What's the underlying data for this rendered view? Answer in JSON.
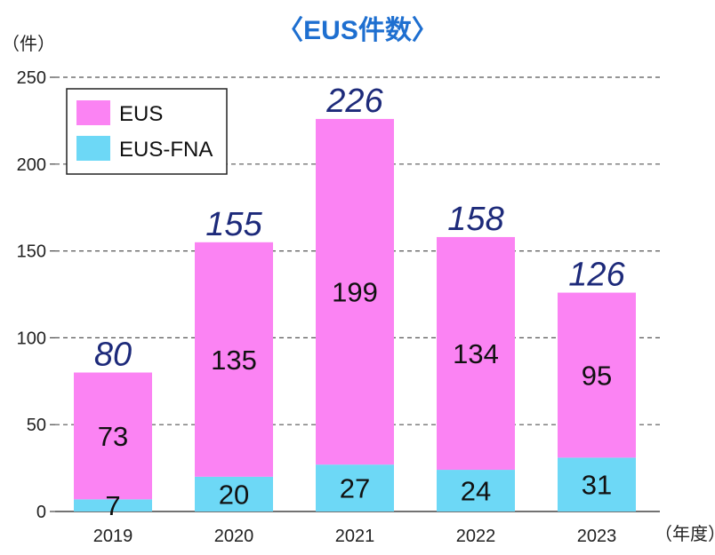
{
  "chart_data": {
    "type": "bar",
    "stacked": true,
    "title": "〈EUS件数〉",
    "ylabel": "（件）",
    "xlabel": "（年度）",
    "ylim": [
      0,
      250
    ],
    "yticks": [
      0,
      50,
      100,
      150,
      200,
      250
    ],
    "grid": true,
    "legend_position": "top-left",
    "categories": [
      "2019",
      "2020",
      "2021",
      "2022",
      "2023"
    ],
    "series": [
      {
        "name": "EUS-FNA",
        "color": "#6dd8f6",
        "values": [
          7,
          20,
          27,
          24,
          31
        ]
      },
      {
        "name": "EUS",
        "color": "#fb83f3",
        "values": [
          73,
          135,
          199,
          134,
          95
        ]
      }
    ],
    "totals": [
      80,
      155,
      226,
      158,
      126
    ],
    "total_label_color": "#1d2a7a",
    "title_color": "#1e6fd0"
  }
}
